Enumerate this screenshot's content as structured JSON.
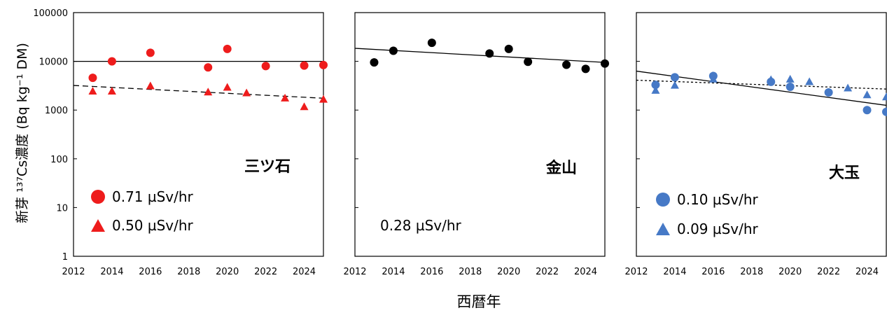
{
  "figure": {
    "ylabel": "新芽 ¹³⁷Cs濃度 (Bq kg⁻¹ DM)",
    "xlabel": "西暦年"
  },
  "chart_data": [
    {
      "type": "scatter",
      "panel": "三ツ石",
      "panel_label": "三ツ石",
      "x_ticks": [
        "2012",
        "2014",
        "2016",
        "2018",
        "2020",
        "2022",
        "2024"
      ],
      "y_ticks": [
        "1",
        "10",
        "100",
        "1000",
        "10000",
        "100000"
      ],
      "xlim": [
        2012,
        2025
      ],
      "ylim": [
        1,
        100000
      ],
      "yscale": "log",
      "legend": [
        {
          "marker": "circle",
          "label": "0.71 µSv/hr",
          "color": "#ee1c1c"
        },
        {
          "marker": "triangle",
          "label": "0.50 µSv/hr",
          "color": "#ee1c1c"
        }
      ],
      "series": [
        {
          "name": "0.71 µSv/hr",
          "marker": "circle",
          "color": "#ee1c1c",
          "x": [
            2013,
            2014,
            2016,
            2019,
            2020,
            2022,
            2024,
            2025
          ],
          "y": [
            4600,
            10000,
            15000,
            7500,
            18000,
            8000,
            8200,
            8400
          ]
        },
        {
          "name": "0.50 µSv/hr",
          "marker": "triangle",
          "color": "#ee1c1c",
          "x": [
            2013,
            2014,
            2016,
            2019,
            2020,
            2021,
            2023,
            2024,
            2025
          ],
          "y": [
            2500,
            2500,
            3200,
            2400,
            3000,
            2300,
            1800,
            1200,
            1700
          ]
        }
      ],
      "trendlines": [
        {
          "style": "solid",
          "x": [
            2012,
            2025
          ],
          "y": [
            10000,
            10000
          ]
        },
        {
          "style": "dashed",
          "x": [
            2012,
            2025
          ],
          "y": [
            3200,
            1750
          ]
        }
      ]
    },
    {
      "type": "scatter",
      "panel": "金山",
      "panel_label": "金山",
      "note": "0.28 µSv/hr",
      "x_ticks": [
        "2012",
        "2014",
        "2016",
        "2018",
        "2020",
        "2022",
        "2024"
      ],
      "xlim": [
        2012,
        2025
      ],
      "ylim": [
        1,
        100000
      ],
      "yscale": "log",
      "series": [
        {
          "name": "0.28 µSv/hr",
          "marker": "circle",
          "color": "#000000",
          "x": [
            2013,
            2014,
            2016,
            2019,
            2020,
            2021,
            2023,
            2024,
            2025
          ],
          "y": [
            9500,
            16500,
            24000,
            14500,
            18000,
            9800,
            8500,
            7000,
            9000
          ]
        }
      ],
      "trendlines": [
        {
          "style": "solid",
          "x": [
            2012,
            2025
          ],
          "y": [
            18500,
            9500
          ]
        }
      ]
    },
    {
      "type": "scatter",
      "panel": "大玉",
      "panel_label": "大玉",
      "x_ticks": [
        "2012",
        "2014",
        "2016",
        "2018",
        "2020",
        "2022",
        "2024"
      ],
      "xlim": [
        2012,
        2025
      ],
      "ylim": [
        1,
        100000
      ],
      "yscale": "log",
      "legend": [
        {
          "marker": "circle",
          "label": "0.10 µSv/hr",
          "color": "#4679c6"
        },
        {
          "marker": "triangle",
          "label": "0.09 µSv/hr",
          "color": "#4679c6"
        }
      ],
      "series": [
        {
          "name": "0.10 µSv/hr",
          "marker": "circle",
          "color": "#4679c6",
          "x": [
            2013,
            2014,
            2016,
            2019,
            2020,
            2022,
            2024,
            2025
          ],
          "y": [
            3300,
            4700,
            5000,
            3800,
            3000,
            2300,
            1000,
            920
          ]
        },
        {
          "name": "0.09 µSv/hr",
          "marker": "triangle",
          "color": "#4679c6",
          "x": [
            2013,
            2014,
            2016,
            2019,
            2020,
            2021,
            2023,
            2024,
            2025
          ],
          "y": [
            2600,
            3300,
            4400,
            4300,
            4400,
            3900,
            2900,
            2100,
            1900
          ]
        }
      ],
      "trendlines": [
        {
          "style": "solid",
          "x": [
            2012,
            2025
          ],
          "y": [
            6300,
            1250
          ]
        },
        {
          "style": "dotted",
          "x": [
            2012,
            2025
          ],
          "y": [
            4100,
            2700
          ]
        }
      ]
    }
  ]
}
